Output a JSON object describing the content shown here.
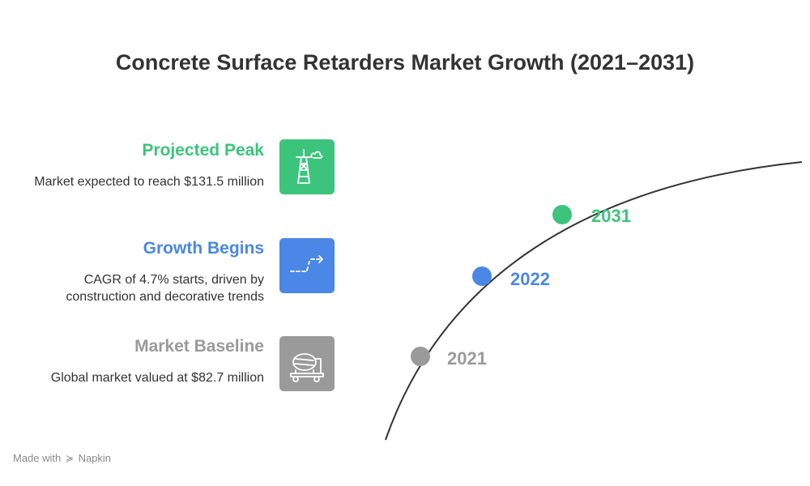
{
  "title": "Concrete Surface Retarders Market Growth (2021–2031)",
  "colors": {
    "peak": "#3cc47c",
    "growth": "#4a87e6",
    "baseline": "#9a9a9a",
    "curve": "#333333"
  },
  "items": [
    {
      "heading": "Projected Peak",
      "description": "Market expected to reach $131.5 million",
      "icon": "oil-rig-icon",
      "year": "2031"
    },
    {
      "heading": "Growth Begins",
      "description": "CAGR of 4.7% starts, driven by construction and decorative trends",
      "icon": "trend-arrow-icon",
      "year": "2022"
    },
    {
      "heading": "Market Baseline",
      "description": "Global market valued at $82.7 million",
      "icon": "cement-mixer-icon",
      "year": "2021"
    }
  ],
  "footer": {
    "prefix": "Made with",
    "brand": "Napkin"
  }
}
